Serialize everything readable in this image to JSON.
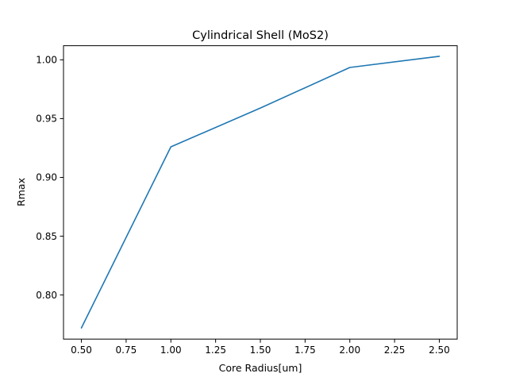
{
  "chart_data": {
    "type": "line",
    "title": "Cylindrical Shell (MoS2)",
    "xlabel": "Core Radius[um]",
    "ylabel": "Rmax",
    "xlim": [
      0.4,
      2.6
    ],
    "ylim": [
      0.7625,
      1.012
    ],
    "xticks": [
      0.5,
      0.75,
      1.0,
      1.25,
      1.5,
      1.75,
      2.0,
      2.25,
      2.5
    ],
    "xtick_labels": [
      "0.50",
      "0.75",
      "1.00",
      "1.25",
      "1.50",
      "1.75",
      "2.00",
      "2.25",
      "2.50"
    ],
    "yticks": [
      0.8,
      0.85,
      0.9,
      0.95,
      1.0
    ],
    "ytick_labels": [
      "0.80",
      "0.85",
      "0.90",
      "0.95",
      "1.00"
    ],
    "grid": false,
    "series": [
      {
        "x": [
          0.5,
          1.0,
          1.5,
          2.0,
          2.5
        ],
        "y": [
          0.772,
          0.926,
          0.959,
          0.9935,
          1.003
        ],
        "color": "#1f77b4"
      }
    ]
  }
}
